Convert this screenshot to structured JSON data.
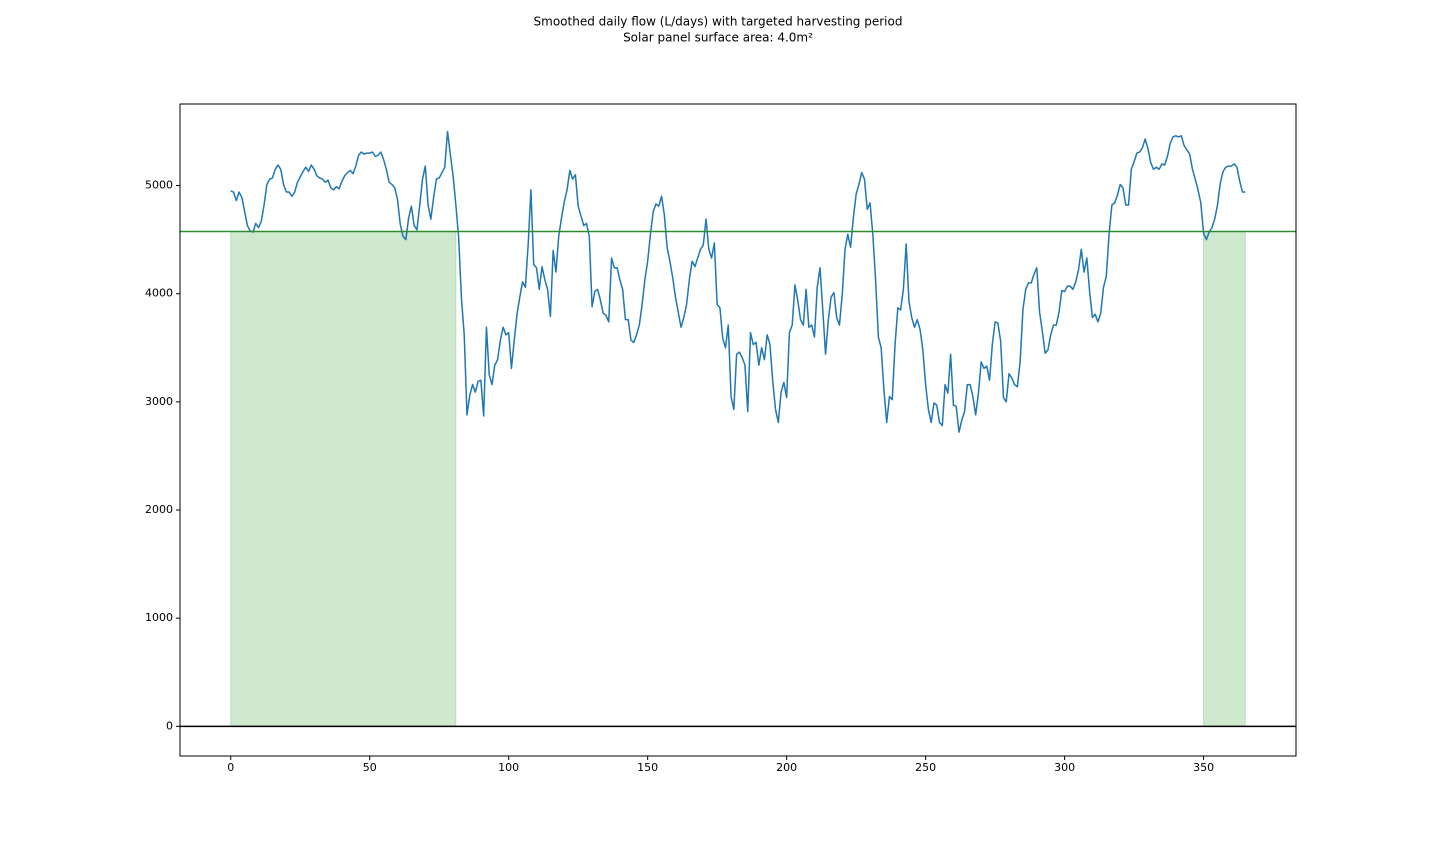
{
  "chart_data": {
    "type": "line",
    "title": "Smoothed daily flow (L/days) with targeted harvesting period",
    "subtitle": "Solar panel surface area: 4.0m²",
    "x": [
      0,
      1,
      2,
      3,
      4,
      5,
      6,
      7,
      8,
      9,
      10,
      11,
      12,
      13,
      14,
      15,
      16,
      17,
      18,
      19,
      20,
      21,
      22,
      23,
      24,
      25,
      26,
      27,
      28,
      29,
      30,
      31,
      32,
      33,
      34,
      35,
      36,
      37,
      38,
      39,
      40,
      41,
      42,
      43,
      44,
      45,
      46,
      47,
      48,
      49,
      50,
      51,
      52,
      53,
      54,
      55,
      56,
      57,
      58,
      59,
      60,
      61,
      62,
      63,
      64,
      65,
      66,
      67,
      68,
      69,
      70,
      71,
      72,
      73,
      74,
      75,
      76,
      77,
      78,
      79,
      80,
      81,
      82,
      83,
      84,
      85,
      86,
      87,
      88,
      89,
      90,
      91,
      92,
      93,
      94,
      95,
      96,
      97,
      98,
      99,
      100,
      101,
      102,
      103,
      104,
      105,
      106,
      107,
      108,
      109,
      110,
      111,
      112,
      113,
      114,
      115,
      116,
      117,
      118,
      119,
      120,
      121,
      122,
      123,
      124,
      125,
      126,
      127,
      128,
      129,
      130,
      131,
      132,
      133,
      134,
      135,
      136,
      137,
      138,
      139,
      140,
      141,
      142,
      143,
      144,
      145,
      146,
      147,
      148,
      149,
      150,
      151,
      152,
      153,
      154,
      155,
      156,
      157,
      158,
      159,
      160,
      161,
      162,
      163,
      164,
      165,
      166,
      167,
      168,
      169,
      170,
      171,
      172,
      173,
      174,
      175,
      176,
      177,
      178,
      179,
      180,
      181,
      182,
      183,
      184,
      185,
      186,
      187,
      188,
      189,
      190,
      191,
      192,
      193,
      194,
      195,
      196,
      197,
      198,
      199,
      200,
      201,
      202,
      203,
      204,
      205,
      206,
      207,
      208,
      209,
      210,
      211,
      212,
      213,
      214,
      215,
      216,
      217,
      218,
      219,
      220,
      221,
      222,
      223,
      224,
      225,
      226,
      227,
      228,
      229,
      230,
      231,
      232,
      233,
      234,
      235,
      236,
      237,
      238,
      239,
      240,
      241,
      242,
      243,
      244,
      245,
      246,
      247,
      248,
      249,
      250,
      251,
      252,
      253,
      254,
      255,
      256,
      257,
      258,
      259,
      260,
      261,
      262,
      263,
      264,
      265,
      266,
      267,
      268,
      269,
      270,
      271,
      272,
      273,
      274,
      275,
      276,
      277,
      278,
      279,
      280,
      281,
      282,
      283,
      284,
      285,
      286,
      287,
      288,
      289,
      290,
      291,
      292,
      293,
      294,
      295,
      296,
      297,
      298,
      299,
      300,
      301,
      302,
      303,
      304,
      305,
      306,
      307,
      308,
      309,
      310,
      311,
      312,
      313,
      314,
      315,
      316,
      317,
      318,
      319,
      320,
      321,
      322,
      323,
      324,
      325,
      326,
      327,
      328,
      329,
      330,
      331,
      332,
      333,
      334,
      335,
      336,
      337,
      338,
      339,
      340,
      341,
      342,
      343,
      344,
      345,
      346,
      347,
      348,
      349,
      350,
      351,
      352,
      353,
      354,
      355,
      356,
      357,
      358,
      359,
      360,
      361,
      362,
      363,
      364,
      365
    ],
    "series": [
      {
        "color": "#1f77b4",
        "values": [
          4950,
          4940,
          4860,
          4940,
          4890,
          4760,
          4630,
          4580,
          4570,
          4650,
          4610,
          4670,
          4820,
          5010,
          5060,
          5070,
          5150,
          5190,
          5150,
          5010,
          4940,
          4940,
          4900,
          4940,
          5030,
          5080,
          5130,
          5170,
          5130,
          5190,
          5150,
          5090,
          5070,
          5060,
          5030,
          5050,
          4980,
          4960,
          4990,
          4970,
          5040,
          5090,
          5120,
          5140,
          5110,
          5180,
          5280,
          5310,
          5290,
          5300,
          5300,
          5310,
          5270,
          5280,
          5310,
          5240,
          5150,
          5030,
          5010,
          4980,
          4870,
          4640,
          4530,
          4500,
          4700,
          4810,
          4630,
          4590,
          4820,
          5060,
          5180,
          4820,
          4690,
          4890,
          5060,
          5070,
          5120,
          5170,
          5500,
          5290,
          5090,
          4820,
          4520,
          3960,
          3620,
          2880,
          3060,
          3160,
          3090,
          3190,
          3200,
          2870,
          3690,
          3250,
          3160,
          3340,
          3390,
          3570,
          3690,
          3620,
          3640,
          3310,
          3570,
          3810,
          3970,
          4110,
          4060,
          4450,
          4960,
          4270,
          4240,
          4040,
          4250,
          4130,
          4040,
          3790,
          4400,
          4200,
          4530,
          4700,
          4850,
          4960,
          5140,
          5060,
          5100,
          4810,
          4720,
          4630,
          4650,
          4530,
          3880,
          4020,
          4040,
          3940,
          3820,
          3800,
          3740,
          4330,
          4240,
          4240,
          4130,
          4040,
          3760,
          3760,
          3570,
          3550,
          3620,
          3710,
          3900,
          4130,
          4300,
          4550,
          4760,
          4830,
          4810,
          4900,
          4730,
          4430,
          4300,
          4150,
          3970,
          3830,
          3690,
          3780,
          3900,
          4130,
          4300,
          4250,
          4330,
          4410,
          4450,
          4690,
          4410,
          4330,
          4470,
          3900,
          3870,
          3590,
          3500,
          3710,
          3050,
          2930,
          3440,
          3460,
          3410,
          3340,
          2910,
          3640,
          3530,
          3550,
          3340,
          3500,
          3390,
          3620,
          3530,
          3190,
          2930,
          2810,
          3090,
          3180,
          3040,
          3640,
          3710,
          4080,
          3940,
          3760,
          3710,
          4040,
          3690,
          3710,
          3600,
          4060,
          4240,
          3850,
          3440,
          3760,
          3970,
          4010,
          3780,
          3710,
          3990,
          4410,
          4550,
          4430,
          4700,
          4920,
          5010,
          5120,
          5060,
          4780,
          4840,
          4550,
          4130,
          3600,
          3500,
          3110,
          2810,
          3050,
          3020,
          3530,
          3870,
          3850,
          4040,
          4460,
          3930,
          3780,
          3690,
          3760,
          3670,
          3480,
          3160,
          2930,
          2810,
          2990,
          2970,
          2810,
          2780,
          3160,
          3080,
          3440,
          2970,
          2960,
          2720,
          2830,
          2910,
          3160,
          3160,
          3050,
          2880,
          3080,
          3370,
          3310,
          3330,
          3200,
          3530,
          3740,
          3730,
          3560,
          3040,
          3000,
          3260,
          3220,
          3160,
          3140,
          3370,
          3850,
          4040,
          4100,
          4100,
          4180,
          4240,
          3830,
          3650,
          3450,
          3480,
          3620,
          3710,
          3710,
          3830,
          4030,
          4020,
          4070,
          4070,
          4040,
          4110,
          4220,
          4410,
          4200,
          4330,
          4020,
          3780,
          3810,
          3740,
          3820,
          4060,
          4160,
          4550,
          4820,
          4840,
          4910,
          5010,
          4980,
          4820,
          4820,
          5150,
          5220,
          5300,
          5310,
          5350,
          5430,
          5340,
          5210,
          5150,
          5170,
          5150,
          5200,
          5190,
          5270,
          5390,
          5450,
          5460,
          5450,
          5460,
          5370,
          5330,
          5290,
          5150,
          5060,
          4960,
          4840,
          4560,
          4500,
          4570,
          4610,
          4690,
          4820,
          5020,
          5130,
          5170,
          5180,
          5180,
          5200,
          5170,
          5040,
          4940,
          4940
        ]
      }
    ],
    "fill": {
      "color": "#2ca02c",
      "opacity": 0.23,
      "ranges": [
        [
          0,
          81
        ],
        [
          350,
          365
        ]
      ],
      "y": [
        0,
        4575
      ]
    },
    "hlines": [
      {
        "y": 4575,
        "color": "#2e8b2e"
      },
      {
        "y": 0,
        "color": "#000000"
      }
    ],
    "xlim": [
      -18.25,
      383.25
    ],
    "ylim": [
      -274,
      5754
    ],
    "xticks": [
      0,
      50,
      100,
      150,
      200,
      250,
      300,
      350
    ],
    "yticks": [
      0,
      1000,
      2000,
      3000,
      4000,
      5000
    ]
  }
}
